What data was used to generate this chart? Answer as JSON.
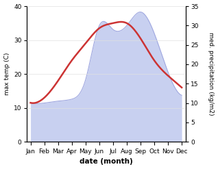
{
  "months": [
    "Jan",
    "Feb",
    "Mar",
    "Apr",
    "May",
    "Jun",
    "Jul",
    "Aug",
    "Sep",
    "Oct",
    "Nov",
    "Dec"
  ],
  "month_positions": [
    0,
    1,
    2,
    3,
    4,
    5,
    6,
    7,
    8,
    9,
    10,
    11
  ],
  "temperature": [
    11.5,
    13.0,
    18.0,
    24.0,
    29.0,
    33.5,
    35.0,
    35.0,
    30.5,
    24.0,
    19.5,
    16.0
  ],
  "precipitation": [
    10.0,
    10.0,
    10.5,
    11.0,
    16.0,
    30.0,
    29.0,
    30.0,
    33.5,
    28.0,
    18.0,
    12.0
  ],
  "temp_color": "#cc3333",
  "precip_fill_color": "#c8d0f0",
  "precip_line_color": "#a0a8e0",
  "left_ylim": [
    0,
    40
  ],
  "right_ylim": [
    0,
    35
  ],
  "left_yticks": [
    0,
    10,
    20,
    30,
    40
  ],
  "right_yticks": [
    0,
    5,
    10,
    15,
    20,
    25,
    30,
    35
  ],
  "ylabel_left": "max temp (C)",
  "ylabel_right": "med. precipitation (kg/m2)",
  "xlabel": "date (month)",
  "background_color": "#ffffff",
  "grid_color": "#e0e0e0",
  "temp_linewidth": 1.8,
  "precip_linewidth": 0.8
}
